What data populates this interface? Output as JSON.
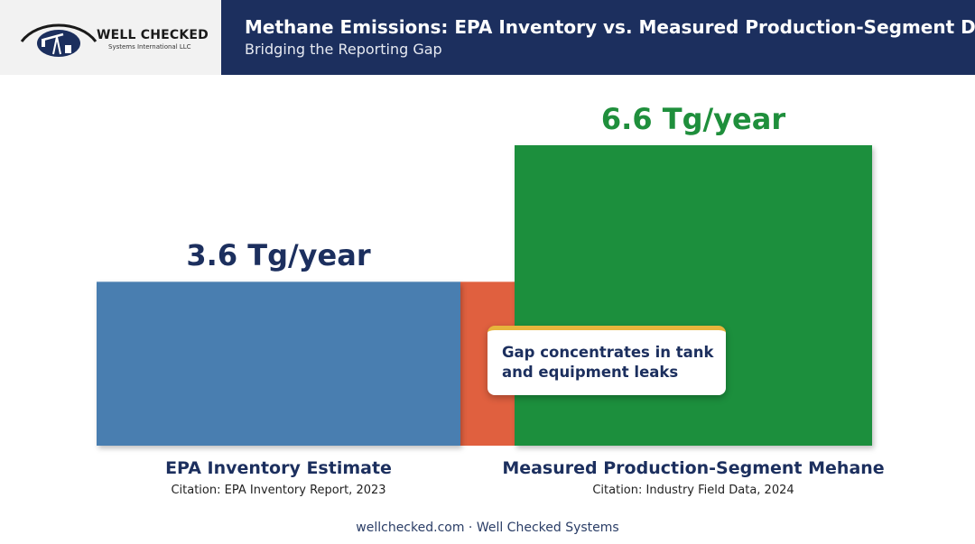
{
  "header": {
    "logo_name": "WELL CHECKED",
    "logo_sub": "Systems International LLC",
    "title": "Methane Emissions: EPA Inventory vs. Measured Production-Segment Data",
    "subtitle": "Bridging the Reporting Gap"
  },
  "chart_data": {
    "type": "bar",
    "categories": [
      "EPA Inventory Estimate",
      "Measured Production-Segment Mehane"
    ],
    "values": [
      3.6,
      6.6
    ],
    "value_labels": [
      "3.6 Tg/year",
      "6.6 Tg/year"
    ],
    "citations": [
      "Citation: EPA Inventory Report, 2023",
      "Citation: Industry Field Data, 2024"
    ],
    "unit": "Tg/year",
    "colors": [
      "#4a7eb0",
      "#1f8f3c"
    ],
    "value_label_colors": [
      "#1c2f5e",
      "#1f8f3c"
    ],
    "gap_color": "#e0603f",
    "ylim": [
      0,
      6.6
    ],
    "grid": false
  },
  "callout": {
    "text": "Gap concentrates in tank and equipment leaks",
    "accent": "#e7b43c"
  },
  "footer": {
    "text": "wellchecked.com · Well Checked Systems"
  }
}
